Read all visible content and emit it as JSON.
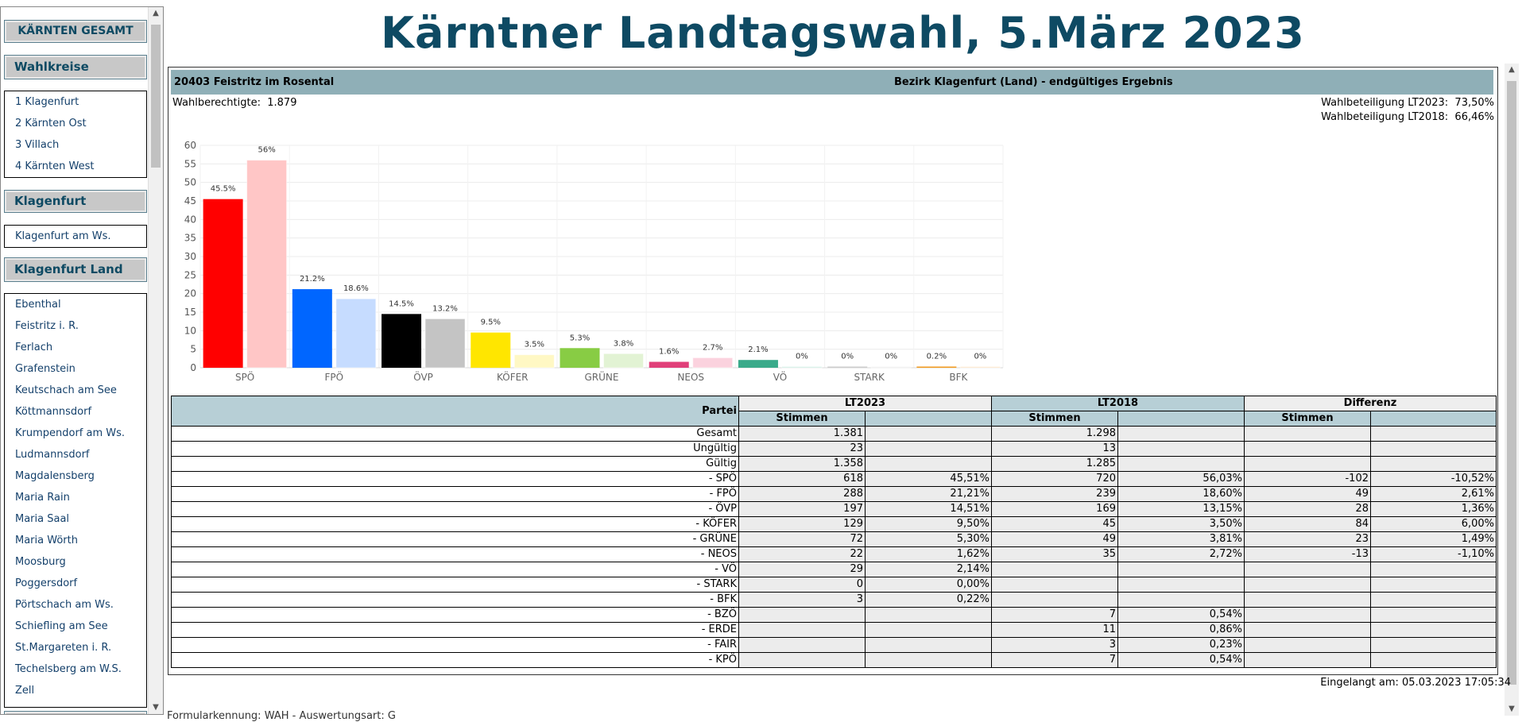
{
  "page_title": "Kärntner Landtagswahl, 5.März 2023",
  "sidebar": {
    "gesamt": "KÄRNTEN GESAMT",
    "wahlkreise_head": "Wahlkreise",
    "wahlkreise": [
      "1 Klagenfurt",
      "2 Kärnten Ost",
      "3 Villach",
      "4 Kärnten West"
    ],
    "klagenfurt_head": "Klagenfurt",
    "klagenfurt_items": [
      "Klagenfurt am Ws."
    ],
    "klagenfurt_land_head": "Klagenfurt Land",
    "gemeinden": [
      "Ebenthal",
      "Feistritz i. R.",
      "Ferlach",
      "Grafenstein",
      "Keutschach am See",
      "Köttmannsdorf",
      "Krumpendorf am Ws.",
      "Ludmannsdorf",
      "Magdalensberg",
      "Maria Rain",
      "Maria Saal",
      "Maria Wörth",
      "Moosburg",
      "Poggersdorf",
      "Pörtschach am Ws.",
      "Schiefling am See",
      "St.Margareten i. R.",
      "Techelsberg am W.S.",
      "Zell"
    ]
  },
  "info": {
    "gemeinde": "20403  Feistritz im Rosental",
    "bezirk": "Bezirk Klagenfurt (Land)  -  endgültiges Ergebnis",
    "wahlberechtigte_label": "Wahlberechtigte:",
    "wahlberechtigte": "1.879",
    "beteiligung_2023_label": "Wahlbeteiligung LT2023:",
    "beteiligung_2023": "73,50%",
    "beteiligung_2018_label": "Wahlbeteiligung LT2018:",
    "beteiligung_2018": "66,46%"
  },
  "chart_data": {
    "type": "bar",
    "categories": [
      "SPÖ",
      "FPÖ",
      "ÖVP",
      "KÖFER",
      "GRÜNE",
      "NEOS",
      "VÖ",
      "STARK",
      "BFK"
    ],
    "series": [
      {
        "values": [
          45.5,
          21.2,
          14.5,
          9.5,
          5.3,
          1.6,
          2.1,
          0,
          0.2
        ],
        "labels": [
          "45.5%",
          "21.2%",
          "14.5%",
          "9.5%",
          "5.3%",
          "1.6%",
          "2.1%",
          "0%",
          "0.2%"
        ]
      },
      {
        "values": [
          56,
          18.6,
          13.2,
          3.5,
          3.8,
          2.7,
          0,
          0,
          0
        ],
        "labels": [
          "56%",
          "18.6%",
          "13.2%",
          "3.5%",
          "3.8%",
          "2.7%",
          "0%",
          "0%",
          "0%"
        ]
      }
    ],
    "colors_2023": [
      "#ff0000",
      "#0066ff",
      "#000000",
      "#ffe600",
      "#88cc44",
      "#e0407a",
      "#3aaa8a",
      "#cccccc",
      "#f29a1e"
    ],
    "colors_2018": [
      "#ffc6c6",
      "#c6dcff",
      "#c4c4c4",
      "#fff8c4",
      "#e2f3d4",
      "#fbd2de",
      "#cfeee4",
      "#eeeeee",
      "#fce6c8"
    ],
    "yticks": [
      0,
      5,
      10,
      15,
      20,
      25,
      30,
      35,
      40,
      45,
      50,
      55,
      60
    ],
    "ylim": [
      0,
      60
    ],
    "grid": true
  },
  "table": {
    "partei_header": "Partei",
    "lt2023": "LT2023",
    "lt2018": "LT2018",
    "differenz": "Differenz",
    "stimmen": "Stimmen",
    "rows": [
      {
        "label": "Gesamt",
        "s23": "1.381",
        "p23": "",
        "s18": "1.298",
        "p18": "",
        "ds": "",
        "dp": ""
      },
      {
        "label": "Ungültig",
        "s23": "23",
        "p23": "",
        "s18": "13",
        "p18": "",
        "ds": "",
        "dp": ""
      },
      {
        "label": "Gültig",
        "s23": "1.358",
        "p23": "",
        "s18": "1.285",
        "p18": "",
        "ds": "",
        "dp": ""
      },
      {
        "label": "- SPÖ",
        "s23": "618",
        "p23": "45,51%",
        "s18": "720",
        "p18": "56,03%",
        "ds": "-102",
        "dp": "-10,52%"
      },
      {
        "label": "- FPÖ",
        "s23": "288",
        "p23": "21,21%",
        "s18": "239",
        "p18": "18,60%",
        "ds": "49",
        "dp": "2,61%"
      },
      {
        "label": "- ÖVP",
        "s23": "197",
        "p23": "14,51%",
        "s18": "169",
        "p18": "13,15%",
        "ds": "28",
        "dp": "1,36%"
      },
      {
        "label": "- KÖFER",
        "s23": "129",
        "p23": "9,50%",
        "s18": "45",
        "p18": "3,50%",
        "ds": "84",
        "dp": "6,00%"
      },
      {
        "label": "- GRÜNE",
        "s23": "72",
        "p23": "5,30%",
        "s18": "49",
        "p18": "3,81%",
        "ds": "23",
        "dp": "1,49%"
      },
      {
        "label": "- NEOS",
        "s23": "22",
        "p23": "1,62%",
        "s18": "35",
        "p18": "2,72%",
        "ds": "-13",
        "dp": "-1,10%"
      },
      {
        "label": "- VÖ",
        "s23": "29",
        "p23": "2,14%",
        "s18": "",
        "p18": "",
        "ds": "",
        "dp": ""
      },
      {
        "label": "- STARK",
        "s23": "0",
        "p23": "0,00%",
        "s18": "",
        "p18": "",
        "ds": "",
        "dp": ""
      },
      {
        "label": "- BFK",
        "s23": "3",
        "p23": "0,22%",
        "s18": "",
        "p18": "",
        "ds": "",
        "dp": ""
      },
      {
        "label": "- BZÖ",
        "s23": "",
        "p23": "",
        "s18": "7",
        "p18": "0,54%",
        "ds": "",
        "dp": ""
      },
      {
        "label": "- ERDE",
        "s23": "",
        "p23": "",
        "s18": "11",
        "p18": "0,86%",
        "ds": "",
        "dp": ""
      },
      {
        "label": "- FAIR",
        "s23": "",
        "p23": "",
        "s18": "3",
        "p18": "0,23%",
        "ds": "",
        "dp": ""
      },
      {
        "label": "- KPÖ",
        "s23": "",
        "p23": "",
        "s18": "7",
        "p18": "0,54%",
        "ds": "",
        "dp": ""
      }
    ]
  },
  "eingelangt": "Eingelangt am: 05.03.2023 17:05:34",
  "footer": "Formularkennung: WAH - Auswertungsart: G"
}
